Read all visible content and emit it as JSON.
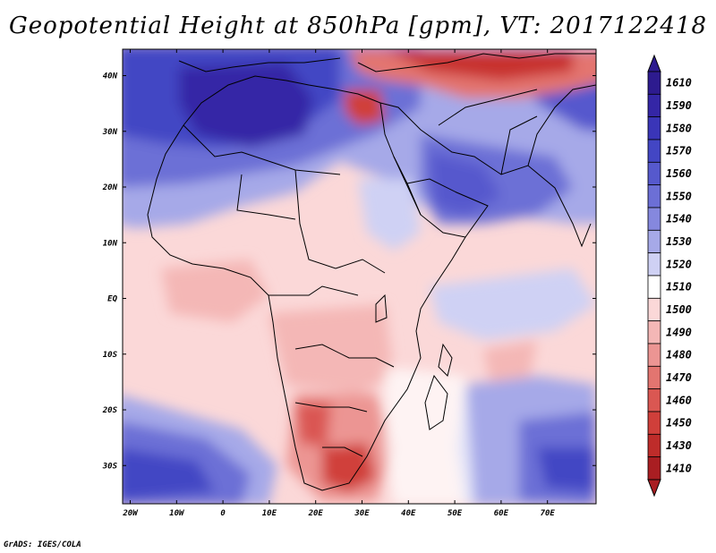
{
  "title": "Geopotential Height at 850hPa [gpm], VT: 2017122418",
  "credit": "GrADS: IGES/COLA",
  "x_ticks": [
    {
      "lon": -20,
      "label": "20W"
    },
    {
      "lon": -10,
      "label": "10W"
    },
    {
      "lon": 0,
      "label": "0"
    },
    {
      "lon": 10,
      "label": "10E"
    },
    {
      "lon": 20,
      "label": "20E"
    },
    {
      "lon": 30,
      "label": "30E"
    },
    {
      "lon": 40,
      "label": "40E"
    },
    {
      "lon": 50,
      "label": "50E"
    },
    {
      "lon": 60,
      "label": "60E"
    },
    {
      "lon": 70,
      "label": "70E"
    }
  ],
  "y_ticks": [
    {
      "lat": 40,
      "label": "40N"
    },
    {
      "lat": 30,
      "label": "30N"
    },
    {
      "lat": 20,
      "label": "20N"
    },
    {
      "lat": 10,
      "label": "10N"
    },
    {
      "lat": 0,
      "label": "EQ"
    },
    {
      "lat": -10,
      "label": "10S"
    },
    {
      "lat": -20,
      "label": "20S"
    },
    {
      "lat": -30,
      "label": "30S"
    }
  ],
  "colorbar": {
    "top_color": "#2d1b8f",
    "bottom_color": "#a91e22",
    "levels": [
      {
        "label": "1610",
        "color": "#2d1b8f"
      },
      {
        "label": "1590",
        "color": "#3426a6"
      },
      {
        "label": "1580",
        "color": "#3a35b8"
      },
      {
        "label": "1570",
        "color": "#4346c4"
      },
      {
        "label": "1560",
        "color": "#5659cd"
      },
      {
        "label": "1550",
        "color": "#6c6fd6"
      },
      {
        "label": "1540",
        "color": "#8588de"
      },
      {
        "label": "1530",
        "color": "#a6a9e8"
      },
      {
        "label": "1520",
        "color": "#cfd1f4"
      },
      {
        "label": "1510",
        "color": "#ffffff"
      },
      {
        "label": "1500",
        "color": "#fbd8d8"
      },
      {
        "label": "1490",
        "color": "#f4b7b6"
      },
      {
        "label": "1480",
        "color": "#ec9593"
      },
      {
        "label": "1470",
        "color": "#e37570"
      },
      {
        "label": "1460",
        "color": "#da5752"
      },
      {
        "label": "1450",
        "color": "#d03f3a"
      },
      {
        "label": "1430",
        "color": "#be2c2a"
      },
      {
        "label": "1410",
        "color": "#a91e22"
      }
    ]
  },
  "map_colors": {
    "background": "#fbd8d8",
    "boundary": "#000000"
  }
}
